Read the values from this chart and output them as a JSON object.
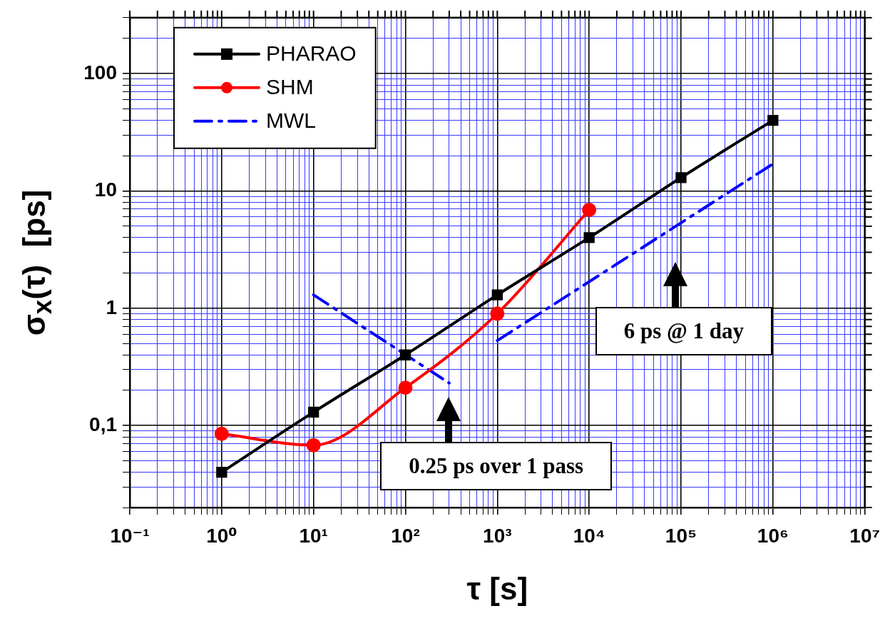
{
  "chart_data": {
    "type": "line",
    "xlabel": "τ [s]",
    "ylabel": "σ$_{x}$(τ)  [ps]",
    "log": "xy",
    "grid": true,
    "legend": "top left",
    "xlim": [
      0.1,
      10000000
    ],
    "ylim": [
      0.02,
      300
    ],
    "xticks": [
      {
        "value": 0.1,
        "label": "10⁻¹"
      },
      {
        "value": 0.2,
        "label": null
      },
      {
        "value": 0.3,
        "label": null
      },
      {
        "value": 0.4,
        "label": null
      },
      {
        "value": 0.5,
        "label": null
      },
      {
        "value": 0.6,
        "label": null
      },
      {
        "value": 0.7,
        "label": null
      },
      {
        "value": 0.8,
        "label": null
      },
      {
        "value": 0.9,
        "label": null
      },
      {
        "value": 1,
        "label": "10⁰"
      },
      {
        "value": 2,
        "label": null
      },
      {
        "value": 3,
        "label": null
      },
      {
        "value": 4,
        "label": null
      },
      {
        "value": 5,
        "label": null
      },
      {
        "value": 6,
        "label": null
      },
      {
        "value": 7,
        "label": null
      },
      {
        "value": 8,
        "label": null
      },
      {
        "value": 9,
        "label": null
      },
      {
        "value": 10,
        "label": "10¹"
      },
      {
        "value": 20,
        "label": null
      },
      {
        "value": 30,
        "label": null
      },
      {
        "value": 40,
        "label": null
      },
      {
        "value": 50,
        "label": null
      },
      {
        "value": 60,
        "label": null
      },
      {
        "value": 70,
        "label": null
      },
      {
        "value": 80,
        "label": null
      },
      {
        "value": 90,
        "label": null
      },
      {
        "value": 100,
        "label": "10²"
      },
      {
        "value": 200,
        "label": null
      },
      {
        "value": 300,
        "label": null
      },
      {
        "value": 400,
        "label": null
      },
      {
        "value": 500,
        "label": null
      },
      {
        "value": 600,
        "label": null
      },
      {
        "value": 700,
        "label": null
      },
      {
        "value": 800,
        "label": null
      },
      {
        "value": 900,
        "label": null
      },
      {
        "value": 1000,
        "label": "10³"
      },
      {
        "value": 2000,
        "label": null
      },
      {
        "value": 3000,
        "label": null
      },
      {
        "value": 4000,
        "label": null
      },
      {
        "value": 5000,
        "label": null
      },
      {
        "value": 6000,
        "label": null
      },
      {
        "value": 7000,
        "label": null
      },
      {
        "value": 8000,
        "label": null
      },
      {
        "value": 9000,
        "label": null
      },
      {
        "value": 10000,
        "label": "10⁴"
      },
      {
        "value": 20000,
        "label": null
      },
      {
        "value": 30000,
        "label": null
      },
      {
        "value": 40000,
        "label": null
      },
      {
        "value": 50000,
        "label": null
      },
      {
        "value": 60000,
        "label": null
      },
      {
        "value": 70000,
        "label": null
      },
      {
        "value": 80000,
        "label": null
      },
      {
        "value": 90000,
        "label": null
      },
      {
        "value": 100000,
        "label": "10⁵"
      },
      {
        "value": 200000,
        "label": null
      },
      {
        "value": 300000,
        "label": null
      },
      {
        "value": 400000,
        "label": null
      },
      {
        "value": 500000,
        "label": null
      },
      {
        "value": 600000,
        "label": null
      },
      {
        "value": 700000,
        "label": null
      },
      {
        "value": 800000,
        "label": null
      },
      {
        "value": 900000,
        "label": null
      },
      {
        "value": 1000000,
        "label": "10⁶"
      },
      {
        "value": 2000000,
        "label": null
      },
      {
        "value": 3000000,
        "label": null
      },
      {
        "value": 4000000,
        "label": null
      },
      {
        "value": 5000000,
        "label": null
      },
      {
        "value": 6000000,
        "label": null
      },
      {
        "value": 7000000,
        "label": null
      },
      {
        "value": 8000000,
        "label": null
      },
      {
        "value": 9000000,
        "label": null
      },
      {
        "value": 10000000,
        "label": "10⁷"
      }
    ],
    "yticks": [
      {
        "value": 0.02,
        "label": null
      },
      {
        "value": 0.03,
        "label": null
      },
      {
        "value": 0.04,
        "label": null
      },
      {
        "value": 0.05,
        "label": null
      },
      {
        "value": 0.06,
        "label": null
      },
      {
        "value": 0.07,
        "label": null
      },
      {
        "value": 0.08,
        "label": null
      },
      {
        "value": 0.09,
        "label": null
      },
      {
        "value": 0.1,
        "label": "0,1"
      },
      {
        "value": 0.2,
        "label": null
      },
      {
        "value": 0.3,
        "label": null
      },
      {
        "value": 0.4,
        "label": null
      },
      {
        "value": 0.5,
        "label": null
      },
      {
        "value": 0.6,
        "label": null
      },
      {
        "value": 0.7,
        "label": null
      },
      {
        "value": 0.8,
        "label": null
      },
      {
        "value": 0.9,
        "label": null
      },
      1,
      {
        "value": 2,
        "label": null
      },
      {
        "value": 3,
        "label": null
      },
      {
        "value": 4,
        "label": null
      },
      {
        "value": 5,
        "label": null
      },
      {
        "value": 6,
        "label": null
      },
      {
        "value": 7,
        "label": null
      },
      {
        "value": 8,
        "label": null
      },
      {
        "value": 9,
        "label": null
      },
      10,
      {
        "value": 20,
        "label": null
      },
      {
        "value": 30,
        "label": null
      },
      {
        "value": 40,
        "label": null
      },
      {
        "value": 50,
        "label": null
      },
      {
        "value": 60,
        "label": null
      },
      {
        "value": 70,
        "label": null
      },
      {
        "value": 80,
        "label": null
      },
      {
        "value": 90,
        "label": null
      },
      100,
      {
        "value": 200,
        "label": null
      },
      {
        "value": 300,
        "label": null
      }
    ],
    "series": [
      {
        "name": "PHARAO",
        "color": "#000000",
        "marker": "square",
        "line_style": "solid",
        "x": [
          1,
          10,
          100,
          1000,
          10000,
          100000,
          1000000
        ],
        "values": [
          0.04,
          0.13,
          0.4,
          1.3,
          4,
          13,
          40
        ]
      },
      {
        "name": "SHM",
        "color": "#ff0000",
        "marker": "circle",
        "line_style": "solid",
        "x": [
          1,
          10,
          100,
          1000,
          10000
        ],
        "values": [
          0.085,
          0.068,
          0.21,
          0.9,
          6.9
        ]
      },
      {
        "name": "MWL",
        "color": "#0000ff",
        "marker": "none",
        "line_style": "dashdot",
        "x": [
          10,
          300,
          500,
          1000,
          1000000
        ],
        "values": [
          1.3,
          0.23,
          null,
          0.53,
          17
        ]
      }
    ],
    "annotations": [
      "0.25 ps over 1 pass",
      "6 ps @ 1 day"
    ]
  }
}
